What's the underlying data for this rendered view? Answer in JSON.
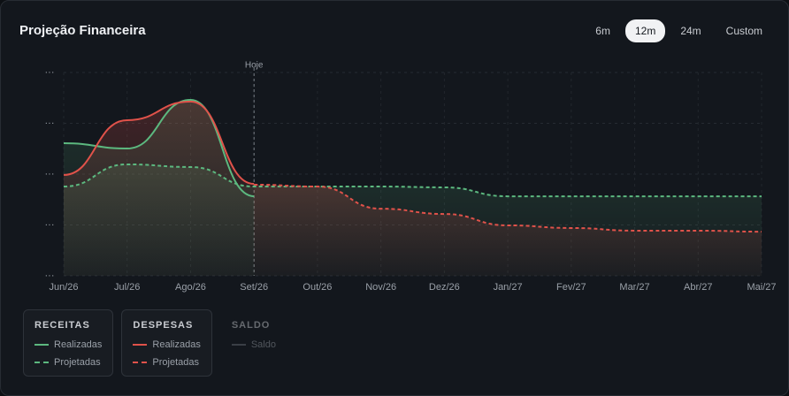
{
  "header": {
    "title": "Projeção Financeira",
    "ranges": [
      "6m",
      "12m",
      "24m",
      "Custom"
    ],
    "active_range": "12m"
  },
  "chart_data": {
    "type": "line",
    "categories": [
      "Jun/26",
      "Jul/26",
      "Ago/26",
      "Set/26",
      "Out/26",
      "Nov/26",
      "Dez/26",
      "Jan/27",
      "Fev/27",
      "Mar/27",
      "Abr/27",
      "Mai/27"
    ],
    "annotation": {
      "label": "Hoje",
      "at": "Set/26"
    },
    "ylim": [
      0,
      100
    ],
    "yticks": [
      {
        "value": 0,
        "label": "···"
      },
      {
        "value": 25,
        "label": "···"
      },
      {
        "value": 50,
        "label": "···"
      },
      {
        "value": 75,
        "label": "···"
      },
      {
        "value": 100,
        "label": "···"
      }
    ],
    "grid": true,
    "series": [
      {
        "group": "RECEITAS",
        "name": "Realizadas",
        "color": "#5cb87f",
        "style": "solid",
        "values": [
          65.2,
          62.6,
          86.5,
          39.1,
          null,
          null,
          null,
          null,
          null,
          null,
          null,
          null
        ]
      },
      {
        "group": "RECEITAS",
        "name": "Projetadas",
        "color": "#5cb87f",
        "style": "dashed",
        "values": [
          43.9,
          54.8,
          53.5,
          43.9,
          43.9,
          43.9,
          43.5,
          39.1,
          39.1,
          39.1,
          39.1,
          39.1
        ]
      },
      {
        "group": "DESPESAS",
        "name": "Realizadas",
        "color": "#e0524a",
        "style": "solid",
        "values": [
          49.6,
          76.5,
          85.7,
          45.2,
          null,
          null,
          null,
          null,
          null,
          null,
          null,
          null
        ]
      },
      {
        "group": "DESPESAS",
        "name": "Projetadas",
        "color": "#e0524a",
        "style": "dashed",
        "values": [
          null,
          null,
          null,
          44.8,
          43.9,
          33.0,
          30.4,
          24.8,
          23.5,
          22.2,
          22.2,
          21.7
        ]
      },
      {
        "group": "SALDO",
        "name": "Saldo",
        "color": "#6b7078",
        "style": "solid",
        "hidden": true,
        "values": [
          null,
          null,
          null,
          null,
          null,
          null,
          null,
          null,
          null,
          null,
          null,
          null
        ]
      }
    ]
  }
}
